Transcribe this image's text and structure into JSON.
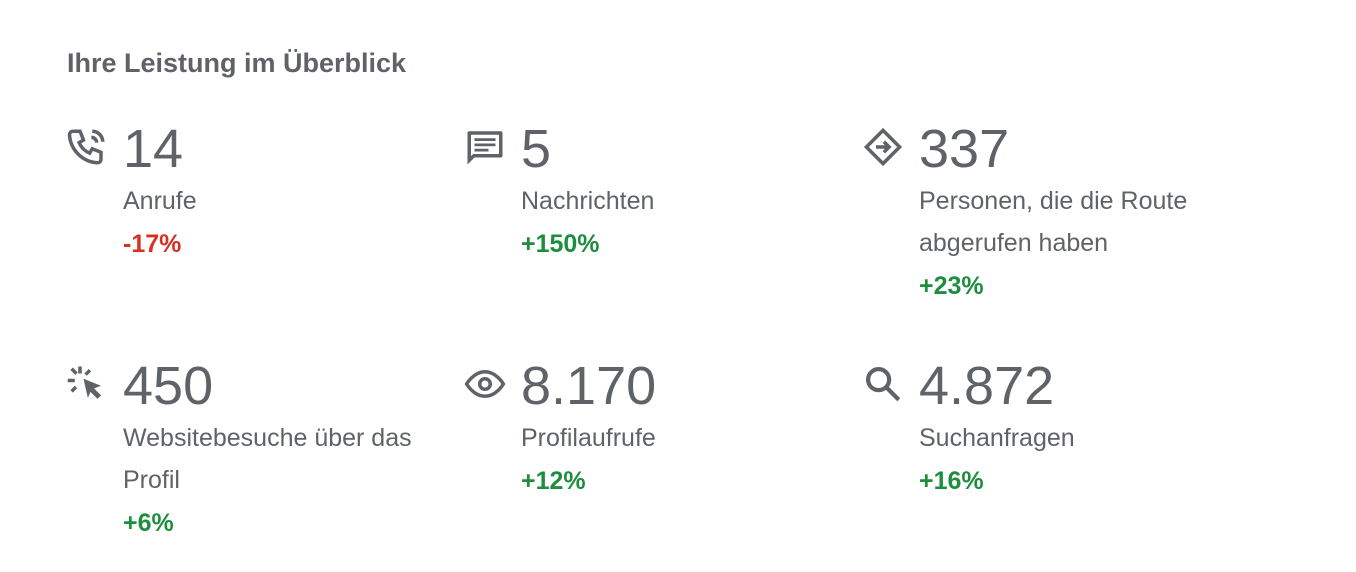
{
  "title": "Ihre Leistung im Überblick",
  "colors": {
    "negative": "#d93025",
    "positive": "#1e8e3e",
    "text": "#5f6368"
  },
  "metrics": [
    {
      "icon": "phone-call-icon",
      "value": "14",
      "label": "Anrufe",
      "delta": "-17%"
    },
    {
      "icon": "message-icon",
      "value": "5",
      "label": "Nachrichten",
      "delta": "+150%"
    },
    {
      "icon": "directions-icon",
      "value": "337",
      "label": "Personen, die die Route abgerufen haben",
      "delta": "+23%"
    },
    {
      "icon": "click-cursor-icon",
      "value": "450",
      "label": "Websitebesuche über das Profil",
      "delta": "+6%"
    },
    {
      "icon": "eye-icon",
      "value": "8.170",
      "label": "Profilaufrufe",
      "delta": "+12%"
    },
    {
      "icon": "search-icon",
      "value": "4.872",
      "label": "Suchanfragen",
      "delta": "+16%"
    }
  ]
}
